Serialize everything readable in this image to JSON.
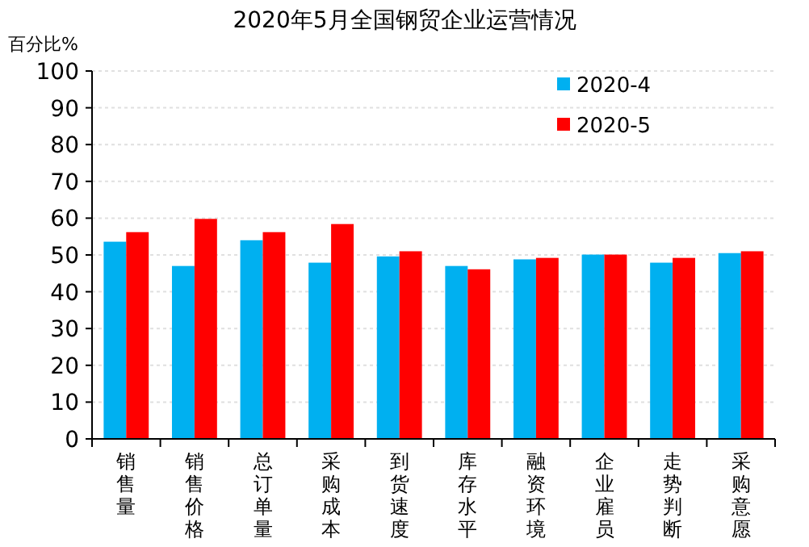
{
  "chart_data": {
    "type": "bar",
    "title": "2020年5月全国钢贸企业运营情况",
    "ylabel": "百分比%",
    "categories": [
      "销售量",
      "销售价格",
      "总订单量",
      "采购成本",
      "到货速度",
      "库存水平",
      "融资环境",
      "企业雇员",
      "走势判断",
      "采购意愿"
    ],
    "series": [
      {
        "name": "2020-4",
        "color": "#00b0f0",
        "values": [
          53.6,
          47.0,
          54.0,
          47.9,
          49.6,
          47.0,
          48.8,
          50.1,
          47.9,
          50.5
        ]
      },
      {
        "name": "2020-5",
        "color": "#ff0000",
        "values": [
          56.2,
          59.8,
          56.2,
          58.4,
          51.0,
          46.1,
          49.2,
          50.1,
          49.2,
          51.0
        ]
      }
    ],
    "ylim": [
      0,
      100
    ],
    "yticks": [
      0,
      10,
      20,
      30,
      40,
      50,
      60,
      70,
      80,
      90,
      100
    ],
    "grid": "y",
    "legend": "top right"
  }
}
